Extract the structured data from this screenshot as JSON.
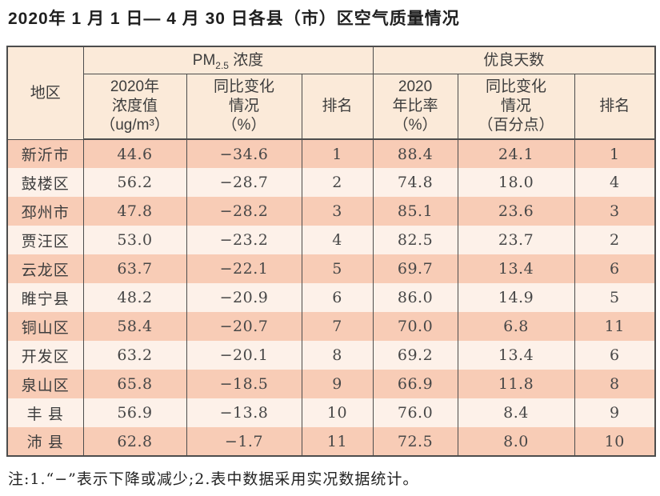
{
  "title": "2020年 1 月 1 日— 4 月 30 日各县（市）区空气质量情况",
  "note": "注:1.“−”表示下降或减少;2.表中数据采用实况数据统计。",
  "colors": {
    "row_odd": "#f8ccb6",
    "row_even": "#fdf1e9",
    "header_bg": "#fbead9",
    "border": "#4d4d4d",
    "text": "#3d3d3d"
  },
  "table": {
    "region_header": "地区",
    "pm_group": {
      "prefix": "PM",
      "sub": "2.5",
      "suffix": " 浓度"
    },
    "good_group": "优良天数",
    "sub_headers": [
      "2020年\n浓度值\n（ug/m³）",
      "同比变化\n情况\n（%）",
      "排名",
      "2020\n年比率\n（%）",
      "同比变化\n情况\n（百分点）",
      "排名"
    ]
  },
  "chart_data": {
    "type": "table",
    "title": "2020年1月1日—4月30日各县（市）区空气质量情况",
    "column_groups": [
      {
        "label": "PM2.5浓度",
        "columns": [
          1,
          2,
          3
        ]
      },
      {
        "label": "优良天数",
        "columns": [
          4,
          5,
          6
        ]
      }
    ],
    "columns": [
      "地区",
      "2020年浓度值（ug/m³）",
      "同比变化情况（%）",
      "排名",
      "2020年比率（%）",
      "同比变化情况（百分点）",
      "排名"
    ],
    "rows": [
      [
        "新沂市",
        "44.6",
        "−34.6",
        "1",
        "88.4",
        "24.1",
        "1"
      ],
      [
        "鼓楼区",
        "56.2",
        "−28.7",
        "2",
        "74.8",
        "18.0",
        "4"
      ],
      [
        "邳州市",
        "47.8",
        "−28.2",
        "3",
        "85.1",
        "23.6",
        "3"
      ],
      [
        "贾汪区",
        "53.0",
        "−23.2",
        "4",
        "82.5",
        "23.7",
        "2"
      ],
      [
        "云龙区",
        "63.7",
        "−22.1",
        "5",
        "69.7",
        "13.4",
        "6"
      ],
      [
        "睢宁县",
        "48.2",
        "−20.9",
        "6",
        "86.0",
        "14.9",
        "5"
      ],
      [
        "铜山区",
        "58.4",
        "−20.7",
        "7",
        "70.0",
        "6.8",
        "11"
      ],
      [
        "开发区",
        "63.2",
        "−20.1",
        "8",
        "69.2",
        "13.4",
        "6"
      ],
      [
        "泉山区",
        "65.8",
        "−18.5",
        "9",
        "66.9",
        "11.8",
        "8"
      ],
      [
        "丰 县",
        "56.9",
        "−13.8",
        "10",
        "76.0",
        "8.4",
        "9"
      ],
      [
        "沛 县",
        "62.8",
        "−1.7",
        "11",
        "72.5",
        "8.0",
        "10"
      ]
    ],
    "note": "注:1.“−”表示下降或减少;2.表中数据采用实况数据统计。"
  }
}
